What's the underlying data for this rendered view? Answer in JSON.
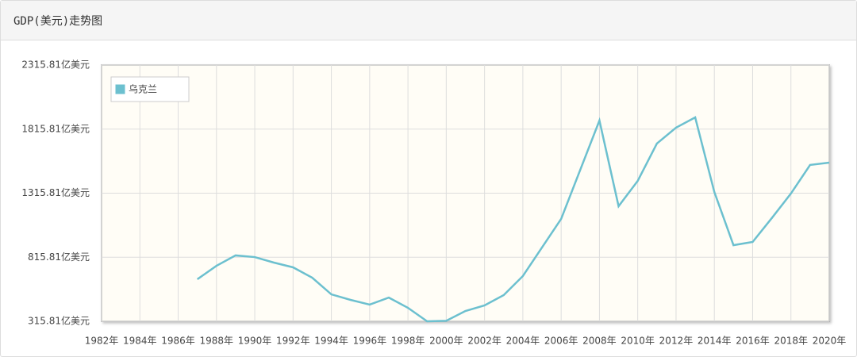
{
  "chart_data": {
    "type": "line",
    "title": "GDP(美元)走势图",
    "x": [
      1987,
      1988,
      1989,
      1990,
      1991,
      1992,
      1993,
      1994,
      1995,
      1996,
      1997,
      1998,
      1999,
      2000,
      2001,
      2002,
      2003,
      2004,
      2005,
      2006,
      2007,
      2008,
      2009,
      2010,
      2011,
      2012,
      2013,
      2014,
      2015,
      2016,
      2017,
      2018,
      2019,
      2020
    ],
    "series": [
      {
        "name": "乌克兰",
        "color": "#6cc0cf",
        "values": [
          644,
          749,
          830,
          817,
          774,
          737,
          656,
          526,
          483,
          446,
          501,
          421,
          316,
          320,
          396,
          440,
          520,
          669,
          892,
          1115,
          1499,
          1883,
          1214,
          1412,
          1703,
          1827,
          1907,
          1325,
          910,
          935,
          1121,
          1313,
          1536,
          1554
        ]
      }
    ],
    "xlim": [
      1982,
      2020
    ],
    "xticks": [
      {
        "value": 1982,
        "label": "1982年"
      },
      {
        "value": 1984,
        "label": "1984年"
      },
      {
        "value": 1986,
        "label": "1986年"
      },
      {
        "value": 1988,
        "label": "1988年"
      },
      {
        "value": 1990,
        "label": "1990年"
      },
      {
        "value": 1992,
        "label": "1992年"
      },
      {
        "value": 1994,
        "label": "1994年"
      },
      {
        "value": 1996,
        "label": "1996年"
      },
      {
        "value": 1998,
        "label": "1998年"
      },
      {
        "value": 2000,
        "label": "2000年"
      },
      {
        "value": 2002,
        "label": "2002年"
      },
      {
        "value": 2004,
        "label": "2004年"
      },
      {
        "value": 2006,
        "label": "2006年"
      },
      {
        "value": 2008,
        "label": "2008年"
      },
      {
        "value": 2010,
        "label": "2010年"
      },
      {
        "value": 2012,
        "label": "2012年"
      },
      {
        "value": 2014,
        "label": "2014年"
      },
      {
        "value": 2016,
        "label": "2016年"
      },
      {
        "value": 2018,
        "label": "2018年"
      },
      {
        "value": 2020,
        "label": "2020年"
      }
    ],
    "ylim": [
      315.81,
      2315.81
    ],
    "yticks": [
      {
        "value": 315.81,
        "label": "315.81亿美元"
      },
      {
        "value": 815.81,
        "label": "815.81亿美元"
      },
      {
        "value": 1315.81,
        "label": "1315.81亿美元"
      },
      {
        "value": 1815.81,
        "label": "1815.81亿美元"
      },
      {
        "value": 2315.81,
        "label": "2315.81亿美元"
      }
    ],
    "grid": true,
    "legend": "upper-left"
  }
}
